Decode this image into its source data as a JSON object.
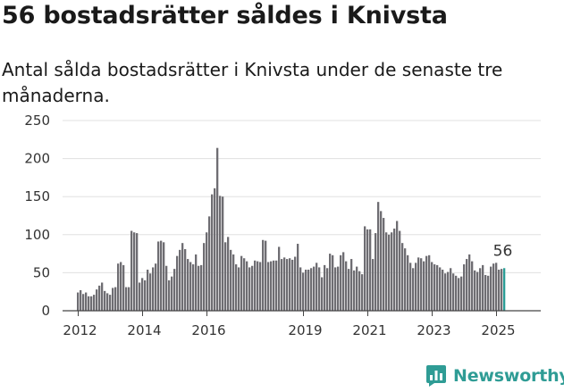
{
  "title": "56 bostadsrätter såldes i Knivsta",
  "subtitle": "Antal sålda bostadsrätter i Knivsta under de senaste tre månaderna.",
  "brand": {
    "name": "Newsworthy",
    "icon": "bar-chart-logo-icon",
    "color": "#2f9c95"
  },
  "colors": {
    "bar": "#6e6d72",
    "highlight": "#2a9d96",
    "grid": "#e0e0e0",
    "axis": "#444444"
  },
  "chart_data": {
    "type": "bar",
    "ylim": [
      0,
      250
    ],
    "yticks": [
      0,
      50,
      100,
      150,
      200,
      250
    ],
    "xticks": [
      {
        "label": "2012",
        "date": "2012-01"
      },
      {
        "label": "2014",
        "date": "2014-01"
      },
      {
        "label": "2016",
        "date": "2016-01"
      },
      {
        "label": "2019",
        "date": "2019-01"
      },
      {
        "label": "2021",
        "date": "2021-01"
      },
      {
        "label": "2023",
        "date": "2023-01"
      },
      {
        "label": "2025",
        "date": "2025-01"
      }
    ],
    "start": "2012-01",
    "highlight_label": "56",
    "grid": true,
    "values": [
      24,
      27,
      22,
      24,
      19,
      19,
      21,
      28,
      33,
      37,
      26,
      23,
      21,
      30,
      31,
      62,
      64,
      60,
      31,
      31,
      105,
      103,
      102,
      37,
      43,
      40,
      54,
      49,
      57,
      62,
      91,
      92,
      90,
      59,
      40,
      45,
      55,
      72,
      80,
      89,
      81,
      68,
      64,
      61,
      74,
      59,
      60,
      89,
      103,
      124,
      153,
      161,
      214,
      151,
      150,
      90,
      97,
      80,
      74,
      61,
      57,
      72,
      69,
      65,
      57,
      59,
      66,
      65,
      64,
      93,
      92,
      64,
      65,
      66,
      66,
      84,
      68,
      70,
      68,
      69,
      67,
      71,
      88,
      57,
      50,
      54,
      54,
      56,
      58,
      63,
      57,
      44,
      60,
      56,
      75,
      73,
      57,
      58,
      73,
      77,
      65,
      55,
      68,
      53,
      58,
      52,
      48,
      111,
      107,
      107,
      68,
      102,
      143,
      131,
      122,
      103,
      100,
      103,
      108,
      118,
      105,
      89,
      82,
      73,
      63,
      56,
      63,
      70,
      69,
      65,
      72,
      73,
      64,
      61,
      60,
      57,
      54,
      49,
      51,
      56,
      49,
      46,
      43,
      45,
      61,
      68,
      74,
      65,
      53,
      51,
      56,
      60,
      47,
      46,
      58,
      62,
      63,
      54,
      55,
      56
    ]
  }
}
